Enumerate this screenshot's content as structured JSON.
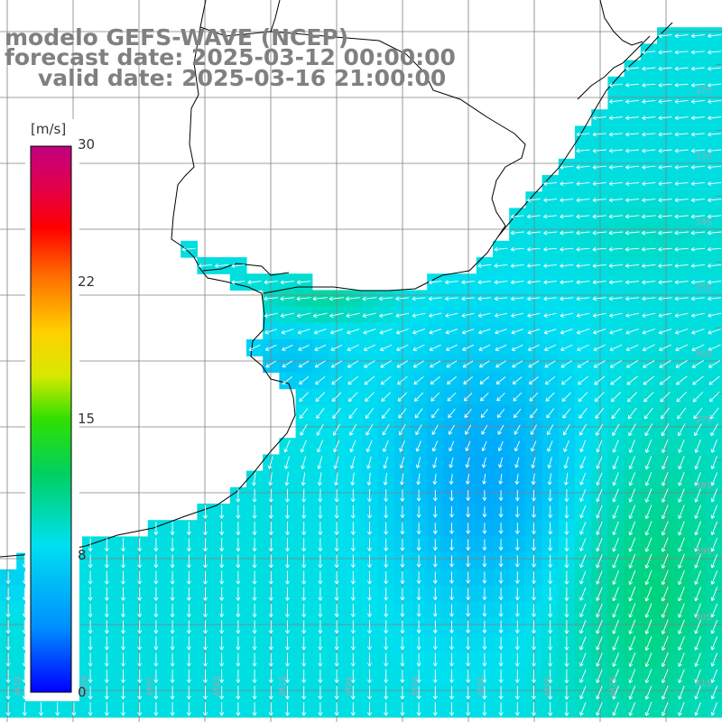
{
  "header": {
    "line1": "modelo GEFS-WAVE (NCEP)",
    "line2": "forecast date: 2025-03-12 00:00:00",
    "line3": "valid date: 2025-03-16 21:00:00"
  },
  "colorbar": {
    "unit": "[m/s]",
    "min": 0,
    "max": 30,
    "ticks": [
      "30",
      "22",
      "15",
      "8",
      "0"
    ],
    "tick_values": [
      30,
      22,
      15,
      8,
      0
    ],
    "colors": [
      "#0000ff",
      "#0090ff",
      "#00e0f0",
      "#00d060",
      "#30e000",
      "#d8e800",
      "#ffd000",
      "#ff7000",
      "#ff0000",
      "#e00050",
      "#c00080"
    ]
  },
  "lat_labels": [
    "32S",
    "33S",
    "34S",
    "35S",
    "36S",
    "37S",
    "38S",
    "39S",
    "40S",
    "41S"
  ],
  "lon_labels": [
    "61W",
    "60W",
    "59W",
    "58W",
    "57W",
    "56W",
    "55W",
    "54W",
    "53W",
    "52W"
  ],
  "colors": {
    "land": "#ffffff",
    "coast": "#000000",
    "grid": "#808080",
    "arrow": "#ffffff"
  }
}
